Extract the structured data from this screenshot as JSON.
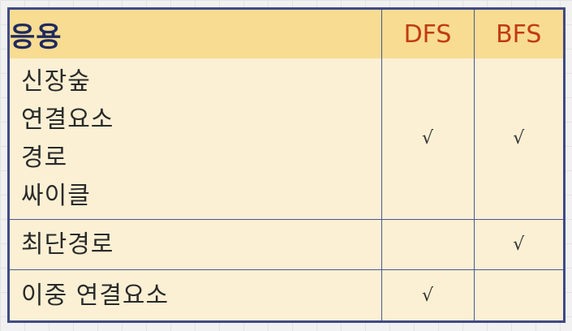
{
  "table": {
    "header": {
      "application": "응용",
      "dfs": "DFS",
      "bfs": "BFS"
    },
    "rows": [
      {
        "applications": [
          "신장숲",
          "연결요소",
          "경로",
          "싸이클"
        ],
        "dfs": "√",
        "bfs": "√"
      },
      {
        "applications": [
          "최단경로"
        ],
        "dfs": "",
        "bfs": "√"
      },
      {
        "applications": [
          "이중 연결요소"
        ],
        "dfs": "√",
        "bfs": ""
      }
    ]
  },
  "colors": {
    "header_background": "#f7dc92",
    "body_background": "#fbf0d4",
    "border": "#3f4a86",
    "algorithm_label": "#c23b10",
    "application_header": "#1f2a5c"
  }
}
